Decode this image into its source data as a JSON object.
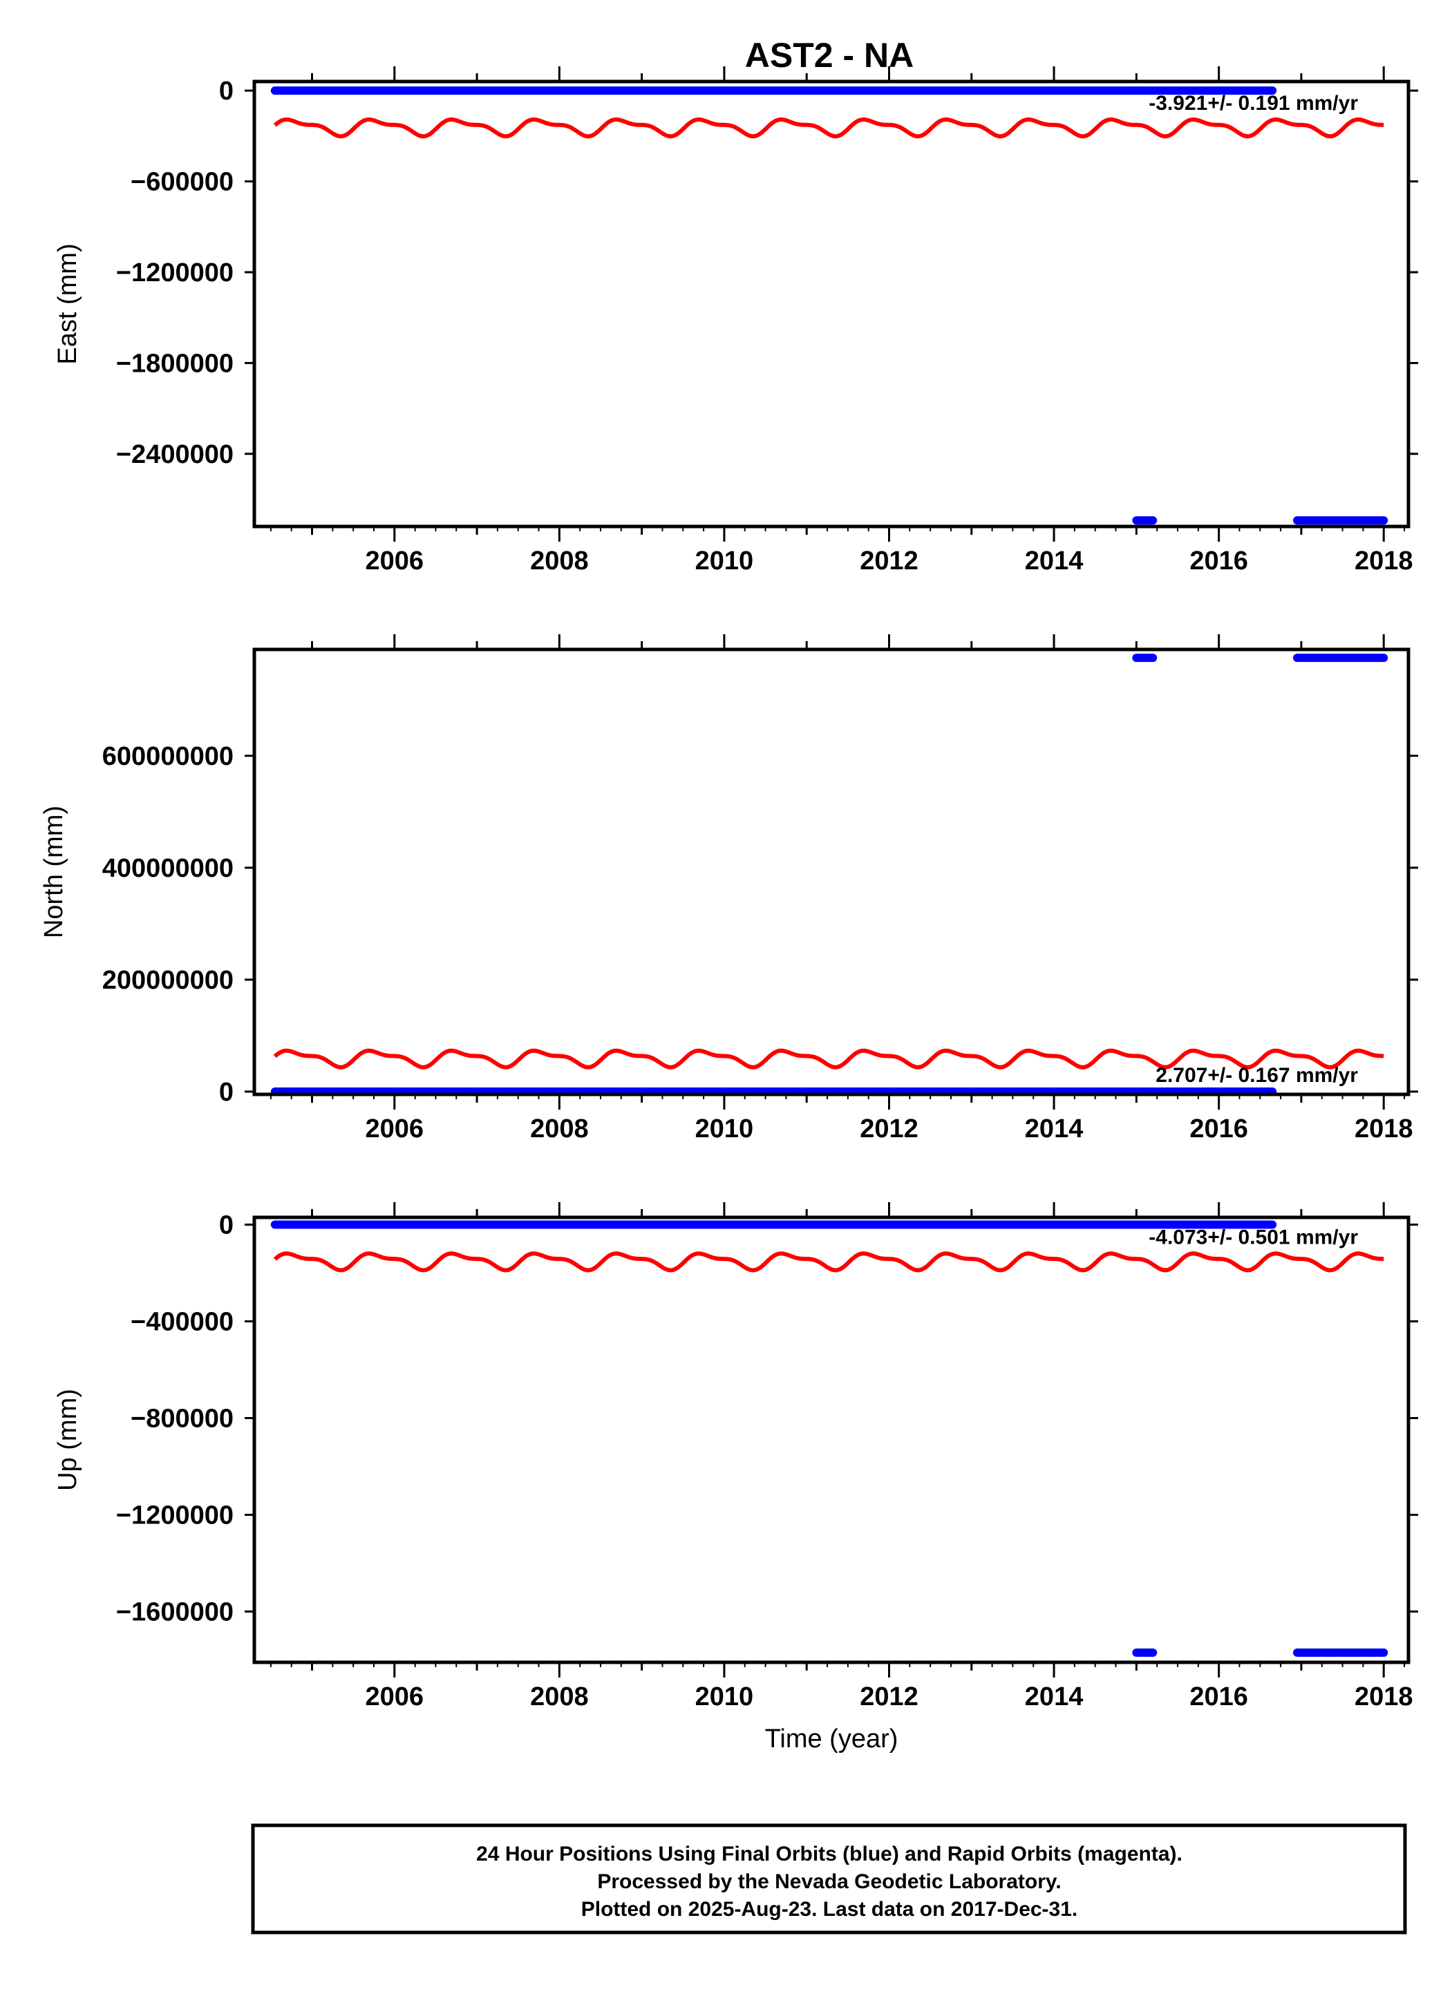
{
  "title": "AST2 - NA",
  "xlabel": "Time (year)",
  "footer": [
    "24 Hour Positions Using Final Orbits (blue) and Rapid Orbits (magenta).",
    "Processed by the Nevada Geodetic Laboratory.",
    "Plotted on 2025-Aug-23. Last data on 2017-Dec-31."
  ],
  "colors": {
    "final": "#0000ff",
    "model": "#ff0000",
    "frame": "#000000"
  },
  "chart_data": [
    {
      "type": "scatter",
      "ylabel": "East (mm)",
      "rate_text": "-3.921+/- 0.191 mm/yr",
      "xlim": [
        2004.3,
        2018.3
      ],
      "ylim": [
        -2880000,
        60000
      ],
      "xticks": [
        2006,
        2008,
        2010,
        2012,
        2014,
        2016,
        2018
      ],
      "yticks": [
        0,
        -600000,
        -1200000,
        -1800000,
        -2400000
      ],
      "ytick_labels": [
        "0",
        "−600000",
        "−1200000",
        "−1800000",
        "−2400000"
      ],
      "series": [
        {
          "role": "final-positions",
          "segments": [
            {
              "x": [
                2004.55,
                2016.65
              ],
              "y": 0
            },
            {
              "x": [
                2015.0,
                2015.2
              ],
              "y": -2840000
            },
            {
              "x": [
                2016.95,
                2018.0
              ],
              "y": -2840000
            }
          ]
        },
        {
          "role": "seasonal-model",
          "x": [
            2004.55,
            2018.0
          ],
          "base": -240000,
          "amplitude": 45000,
          "period_years": 1.0
        }
      ]
    },
    {
      "type": "scatter",
      "ylabel": "North (mm)",
      "rate_text": "2.707+/- 0.167 mm/yr",
      "xlim": [
        2004.3,
        2018.3
      ],
      "ylim": [
        -5000000,
        790000000
      ],
      "xticks": [
        2006,
        2008,
        2010,
        2012,
        2014,
        2016,
        2018
      ],
      "yticks": [
        0,
        200000000,
        400000000,
        600000000
      ],
      "ytick_labels": [
        "0",
        "200000000",
        "400000000",
        "600000000"
      ],
      "series": [
        {
          "role": "final-positions",
          "segments": [
            {
              "x": [
                2004.55,
                2016.65
              ],
              "y": 0
            },
            {
              "x": [
                2015.0,
                2015.2
              ],
              "y": 775000000
            },
            {
              "x": [
                2016.95,
                2018.0
              ],
              "y": 775000000
            }
          ]
        },
        {
          "role": "seasonal-model",
          "x": [
            2004.55,
            2018.0
          ],
          "base": 60000000,
          "amplitude": 12000000,
          "period_years": 1.0
        }
      ]
    },
    {
      "type": "scatter",
      "ylabel": "Up (mm)",
      "rate_text": "-4.073+/- 0.501 mm/yr",
      "xlim": [
        2004.3,
        2018.3
      ],
      "ylim": [
        -1810000,
        30000
      ],
      "xticks": [
        2006,
        2008,
        2010,
        2012,
        2014,
        2016,
        2018
      ],
      "yticks": [
        0,
        -400000,
        -800000,
        -1200000,
        -1600000
      ],
      "ytick_labels": [
        "0",
        "−400000",
        "−800000",
        "−1200000",
        "−1600000"
      ],
      "series": [
        {
          "role": "final-positions",
          "segments": [
            {
              "x": [
                2004.55,
                2016.65
              ],
              "y": 0
            },
            {
              "x": [
                2015.0,
                2015.2
              ],
              "y": -1770000
            },
            {
              "x": [
                2016.95,
                2018.0
              ],
              "y": -1770000
            }
          ]
        },
        {
          "role": "seasonal-model",
          "x": [
            2004.55,
            2018.0
          ],
          "base": -150000,
          "amplitude": 28000,
          "period_years": 1.0
        }
      ]
    }
  ]
}
